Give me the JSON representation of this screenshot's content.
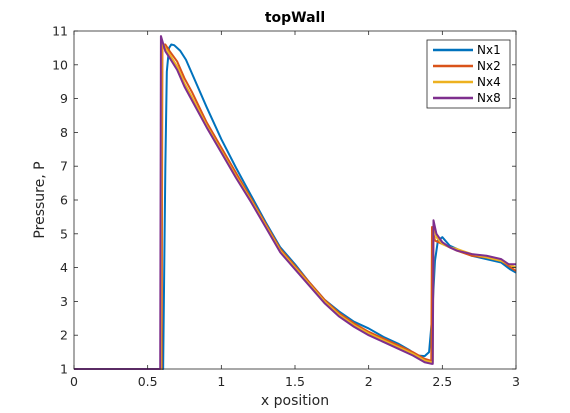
{
  "chart_data": {
    "type": "line",
    "title": "topWall",
    "xlabel": "x position",
    "ylabel": "Pressure, P",
    "xlim": [
      0,
      3
    ],
    "ylim": [
      1,
      11
    ],
    "xticks": [
      0,
      0.5,
      1,
      1.5,
      2,
      2.5,
      3
    ],
    "xtick_labels": [
      "0",
      "0.5",
      "1",
      "1.5",
      "2",
      "2.5",
      "3"
    ],
    "yticks": [
      1,
      2,
      3,
      4,
      5,
      6,
      7,
      8,
      9,
      10,
      11
    ],
    "ytick_labels": [
      "1",
      "2",
      "3",
      "4",
      "5",
      "6",
      "7",
      "8",
      "9",
      "10",
      "11"
    ],
    "grid": false,
    "legend_position": "top-right",
    "series": [
      {
        "name": "Nx1",
        "color": "#0072BD",
        "x": [
          0,
          0.3,
          0.6,
          0.605,
          0.61,
          0.62,
          0.63,
          0.645,
          0.66,
          0.68,
          0.72,
          0.76,
          0.8,
          0.9,
          1.0,
          1.1,
          1.2,
          1.3,
          1.4,
          1.5,
          1.6,
          1.7,
          1.8,
          1.9,
          2.0,
          2.1,
          2.2,
          2.28,
          2.33,
          2.38,
          2.41,
          2.43,
          2.45,
          2.47,
          2.5,
          2.55,
          2.6,
          2.7,
          2.8,
          2.9,
          2.96,
          3.0
        ],
        "y": [
          1,
          1,
          1,
          1,
          3,
          7,
          9.8,
          10.5,
          10.6,
          10.58,
          10.42,
          10.15,
          9.75,
          8.75,
          7.8,
          6.95,
          6.15,
          5.35,
          4.6,
          4.1,
          3.55,
          3.05,
          2.7,
          2.4,
          2.2,
          1.95,
          1.75,
          1.55,
          1.4,
          1.38,
          1.5,
          2.5,
          4.2,
          4.8,
          4.9,
          4.65,
          4.55,
          4.35,
          4.25,
          4.15,
          3.95,
          3.85
        ]
      },
      {
        "name": "Nx2",
        "color": "#D95319",
        "x": [
          0,
          0.3,
          0.59,
          0.595,
          0.6,
          0.62,
          0.65,
          0.7,
          0.75,
          0.8,
          0.9,
          1.0,
          1.1,
          1.2,
          1.3,
          1.4,
          1.5,
          1.6,
          1.7,
          1.8,
          1.9,
          2.0,
          2.1,
          2.2,
          2.3,
          2.38,
          2.42,
          2.425,
          2.43,
          2.45,
          2.5,
          2.55,
          2.6,
          2.7,
          2.8,
          2.9,
          2.95,
          3.0
        ],
        "y": [
          1,
          1,
          1,
          1,
          10.6,
          10.6,
          10.4,
          10.1,
          9.6,
          9.2,
          8.3,
          7.55,
          6.8,
          6.05,
          5.3,
          4.55,
          4.05,
          3.55,
          3.05,
          2.65,
          2.35,
          2.1,
          1.9,
          1.7,
          1.5,
          1.3,
          1.25,
          1.25,
          5.2,
          4.8,
          4.7,
          4.6,
          4.5,
          4.35,
          4.3,
          4.2,
          4.05,
          3.9
        ]
      },
      {
        "name": "Nx4",
        "color": "#EDB120",
        "x": [
          0,
          0.3,
          0.585,
          0.59,
          0.595,
          0.62,
          0.65,
          0.7,
          0.75,
          0.8,
          0.9,
          1.0,
          1.1,
          1.2,
          1.3,
          1.4,
          1.5,
          1.6,
          1.7,
          1.8,
          1.9,
          2.0,
          2.1,
          2.2,
          2.3,
          2.38,
          2.43,
          2.435,
          2.44,
          2.46,
          2.5,
          2.55,
          2.6,
          2.7,
          2.8,
          2.9,
          2.95,
          3.0
        ],
        "y": [
          1,
          1,
          1,
          1,
          10.7,
          10.5,
          10.3,
          9.95,
          9.45,
          9.05,
          8.2,
          7.45,
          6.7,
          6.0,
          5.25,
          4.5,
          4.0,
          3.5,
          3.0,
          2.6,
          2.3,
          2.05,
          1.85,
          1.65,
          1.45,
          1.25,
          1.2,
          1.2,
          5.3,
          4.9,
          4.7,
          4.6,
          4.55,
          4.4,
          4.3,
          4.2,
          4.1,
          4.0
        ]
      },
      {
        "name": "Nx8",
        "color": "#7E2F8E",
        "x": [
          0,
          0.3,
          0.58,
          0.585,
          0.59,
          0.62,
          0.65,
          0.7,
          0.75,
          0.8,
          0.9,
          1.0,
          1.1,
          1.2,
          1.3,
          1.4,
          1.5,
          1.6,
          1.7,
          1.8,
          1.9,
          2.0,
          2.1,
          2.2,
          2.3,
          2.38,
          2.43,
          2.435,
          2.44,
          2.46,
          2.5,
          2.55,
          2.6,
          2.7,
          2.8,
          2.9,
          2.95,
          3.0
        ],
        "y": [
          1,
          1,
          1,
          1,
          10.85,
          10.4,
          10.2,
          9.85,
          9.35,
          8.95,
          8.15,
          7.4,
          6.65,
          5.95,
          5.2,
          4.45,
          3.95,
          3.45,
          2.95,
          2.55,
          2.25,
          2.0,
          1.8,
          1.6,
          1.4,
          1.2,
          1.15,
          1.15,
          5.4,
          5.0,
          4.75,
          4.6,
          4.5,
          4.4,
          4.35,
          4.25,
          4.1,
          4.1
        ]
      }
    ]
  }
}
